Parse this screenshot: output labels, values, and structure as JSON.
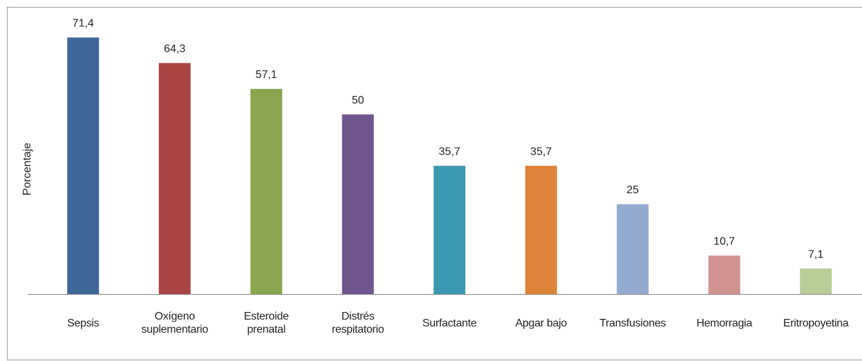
{
  "chart_data": {
    "type": "bar",
    "y_label": "Porcentaje",
    "categories": [
      "Sepsis",
      "Oxígeno suplementario",
      "Esteroide prenatal",
      "Distrés respitatorio",
      "Surfactante",
      "Apgar bajo",
      "Transfusiones",
      "Hemorragia",
      "Eritropoyetina"
    ],
    "values": [
      71.4,
      64.3,
      57.1,
      50,
      35.7,
      35.7,
      25,
      10.7,
      7.1
    ],
    "value_labels": [
      "71,4",
      "64,3",
      "57,1",
      "50",
      "35,7",
      "35,7",
      "25",
      "10,7",
      "7,1"
    ],
    "colors": [
      "#3f679a",
      "#ab4543",
      "#89a64e",
      "#6f568e",
      "#3d99b0",
      "#dd843a",
      "#93a9cf",
      "#d09392",
      "#b9ce97"
    ],
    "ylim": [
      0,
      78
    ]
  }
}
